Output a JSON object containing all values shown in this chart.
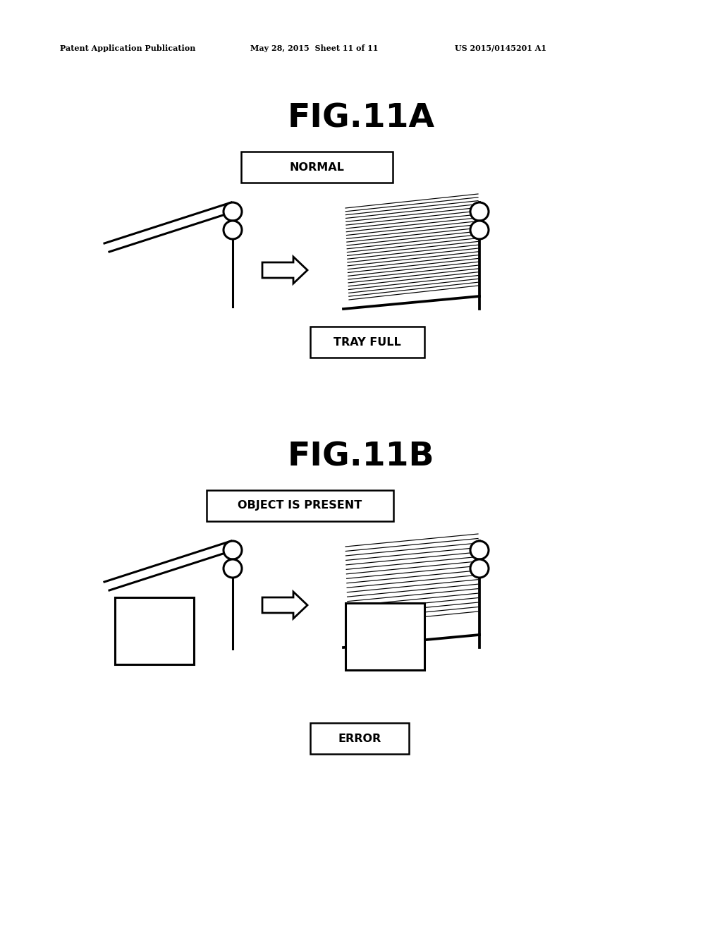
{
  "bg_color": "#ffffff",
  "text_color": "#000000",
  "header_left": "Patent Application Publication",
  "header_mid": "May 28, 2015  Sheet 11 of 11",
  "header_right": "US 2015/0145201 A1",
  "fig_a_title": "FIG.11A",
  "fig_b_title": "FIG.11B",
  "label_normal": "NORMAL",
  "label_tray_full": "TRAY FULL",
  "label_object": "OBJECT IS PRESENT",
  "label_error": "ERROR"
}
